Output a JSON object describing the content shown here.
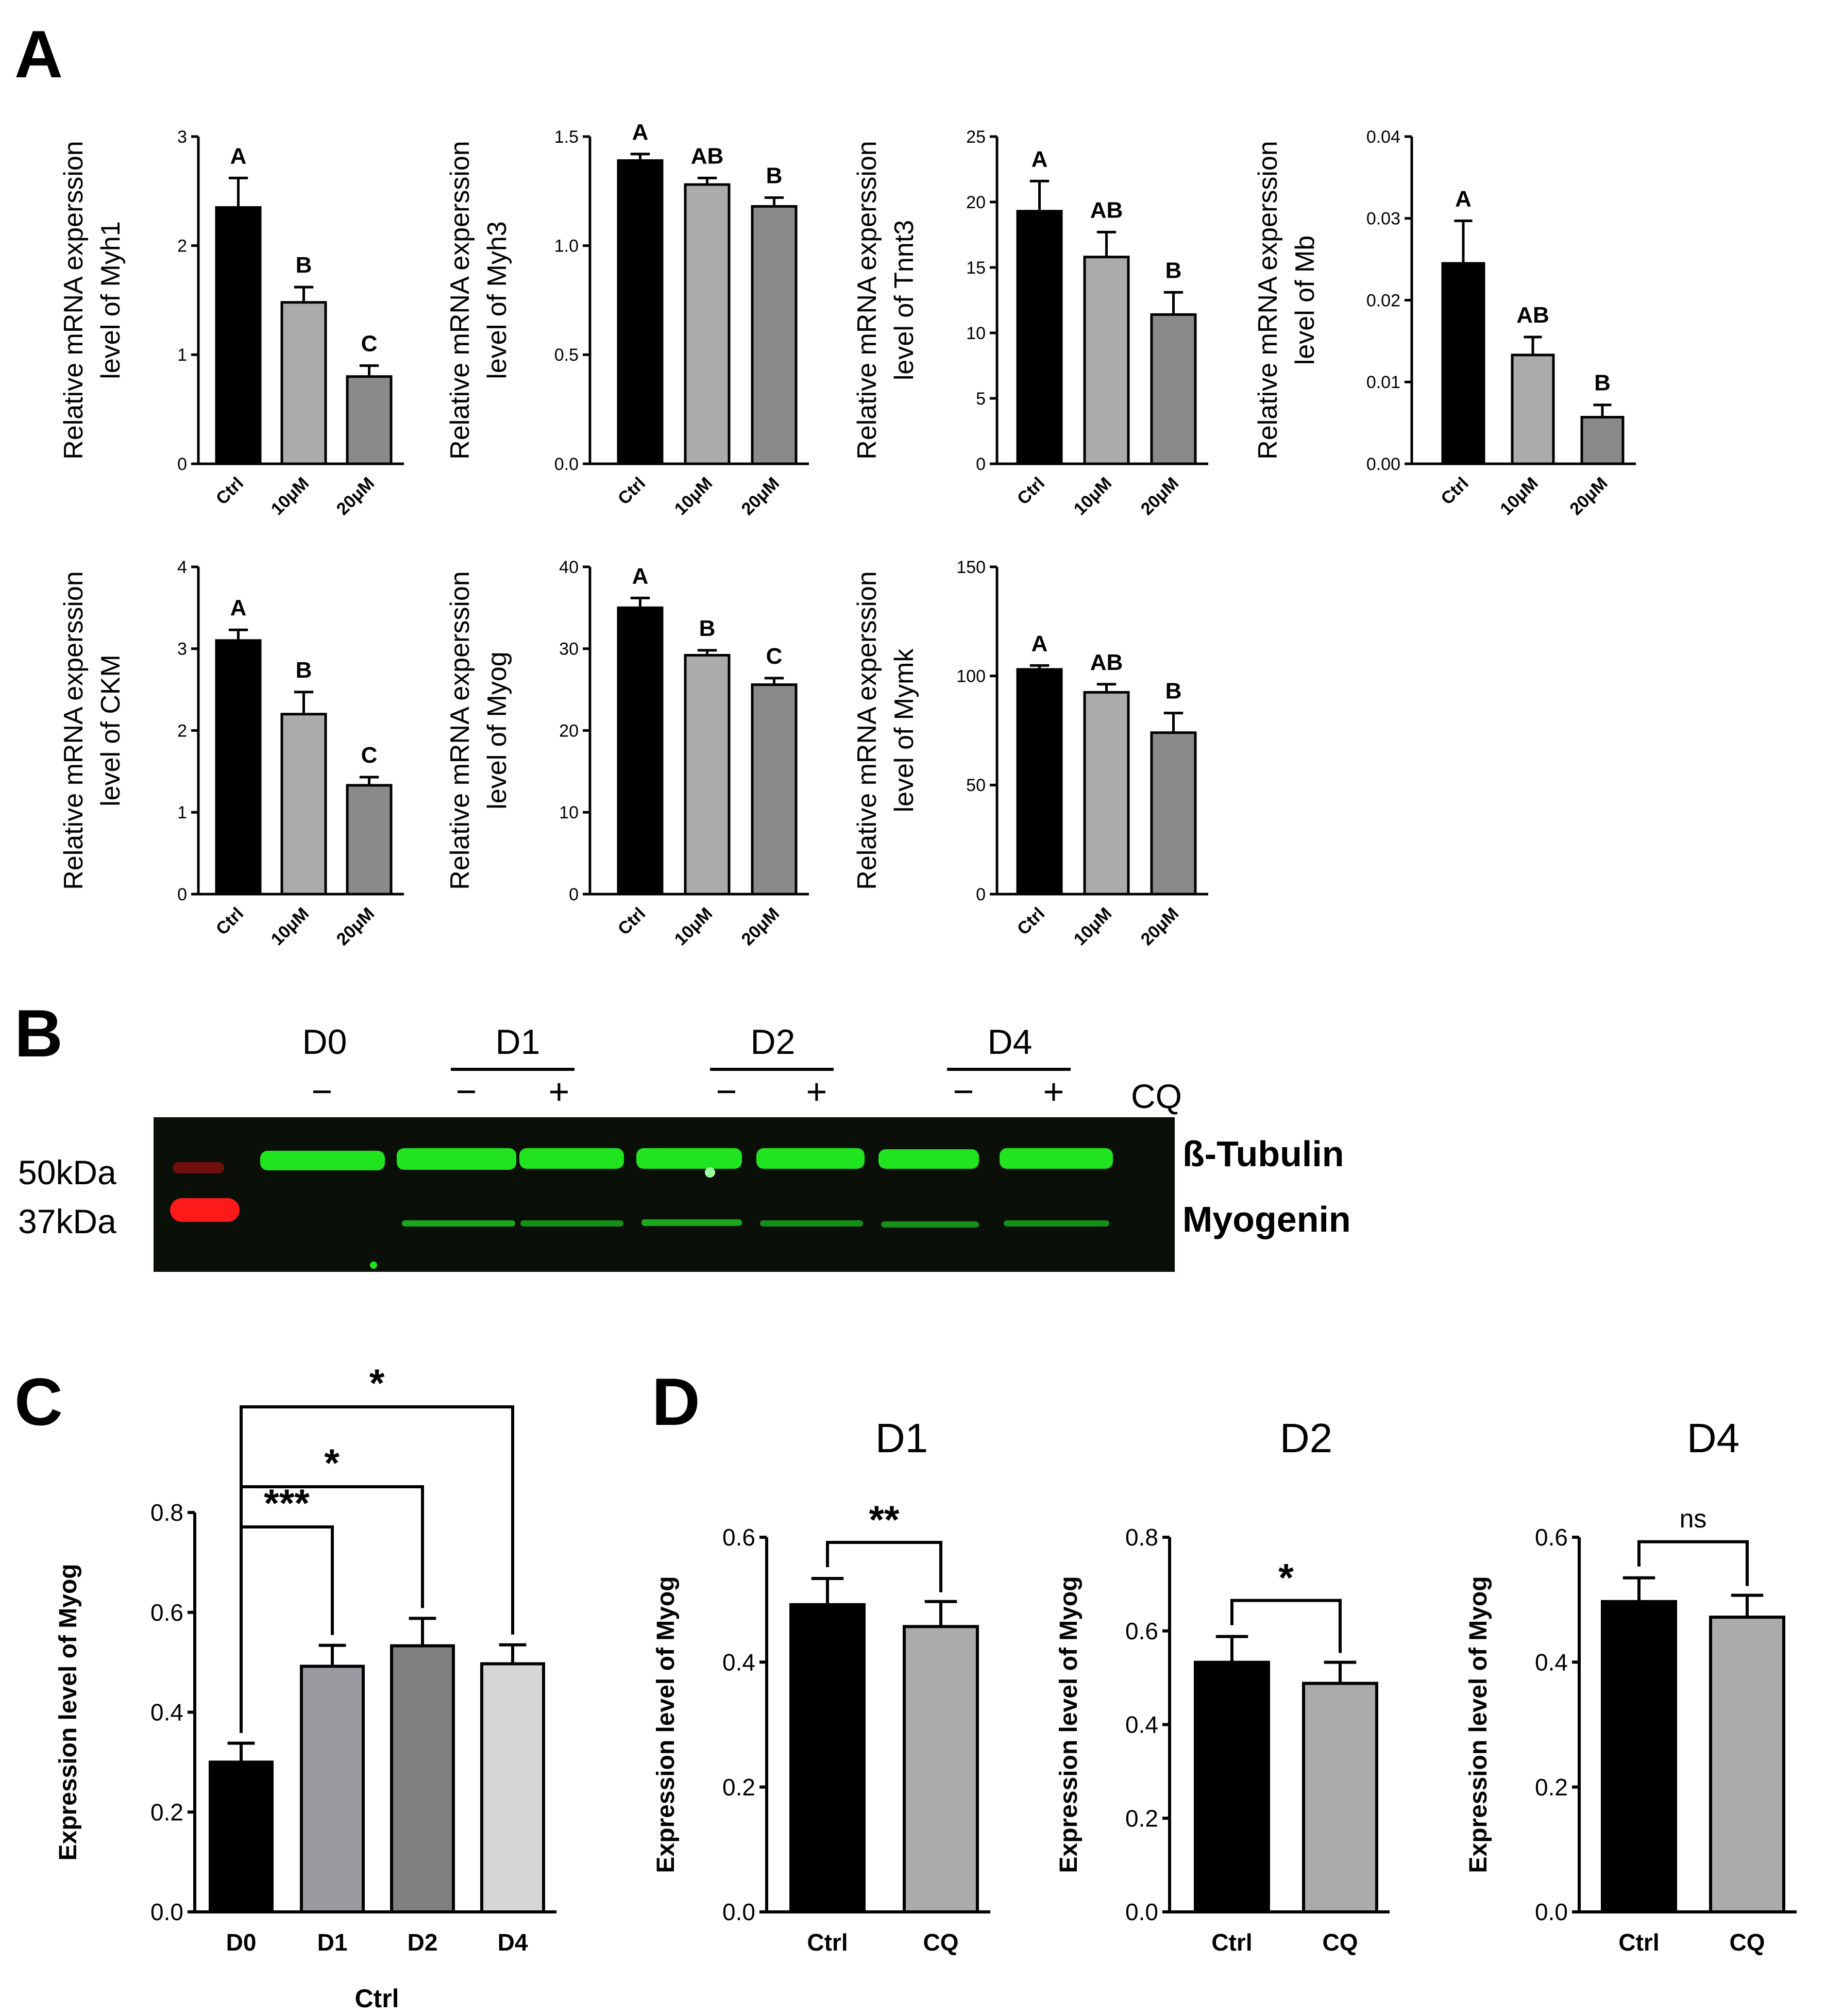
{
  "panel_labels": {
    "a": "A",
    "b": "B",
    "c": "C",
    "d": "D"
  },
  "colors": {
    "ctrl": "#000000",
    "dose10": "#ababab",
    "dose20": "#8a8a8a",
    "d1": "#9a9aa0",
    "d2": "#808080",
    "d4": "#d6d6d6",
    "cq": "#ababab",
    "blot_bg": "#0a0f08",
    "blot_green": "#1fe41f",
    "blot_red": "#ff1a1a"
  },
  "panel_b": {
    "groups": [
      {
        "label": "D0",
        "signs": [
          "−"
        ]
      },
      {
        "label": "D1",
        "signs": [
          "−",
          "+"
        ]
      },
      {
        "label": "D2",
        "signs": [
          "−",
          "+"
        ]
      },
      {
        "label": "D4",
        "signs": [
          "−",
          "+"
        ]
      }
    ],
    "treatment_label": "CQ",
    "marker_50": "50kDa",
    "marker_37": "37kDa",
    "band_top": "ß-Tubulin",
    "band_bottom": "Myogenin"
  },
  "chart_data": [
    {
      "id": "a1",
      "type": "bar",
      "ylabel": [
        "Relative mRNA experssion",
        "level of Myh1"
      ],
      "categories": [
        "Ctrl",
        "10μM",
        "20μM"
      ],
      "values": [
        2.35,
        1.48,
        0.8
      ],
      "errors": [
        0.27,
        0.14,
        0.1
      ],
      "letters": [
        "A",
        "B",
        "C"
      ],
      "ylim": [
        0,
        3
      ],
      "yticks": [
        "0",
        "1",
        "2",
        "3"
      ]
    },
    {
      "id": "a2",
      "type": "bar",
      "ylabel": [
        "Relative mRNA experssion",
        "level of Myh3"
      ],
      "categories": [
        "Ctrl",
        "10μM",
        "20μM"
      ],
      "values": [
        1.39,
        1.28,
        1.18
      ],
      "errors": [
        0.03,
        0.03,
        0.04
      ],
      "letters": [
        "A",
        "AB",
        "B"
      ],
      "ylim": [
        0,
        1.5
      ],
      "yticks": [
        "0.0",
        "0.5",
        "1.0",
        "1.5"
      ]
    },
    {
      "id": "a3",
      "type": "bar",
      "ylabel": [
        "Relative mRNA experssion",
        "level of Tnnt3"
      ],
      "categories": [
        "Ctrl",
        "10μM",
        "20μM"
      ],
      "values": [
        19.3,
        15.8,
        11.4
      ],
      "errors": [
        2.3,
        1.9,
        1.7
      ],
      "letters": [
        "A",
        "AB",
        "B"
      ],
      "ylim": [
        0,
        25
      ],
      "yticks": [
        "0",
        "5",
        "10",
        "15",
        "20",
        "25"
      ]
    },
    {
      "id": "a4",
      "type": "bar",
      "ylabel": [
        "Relative mRNA experssion",
        "level of Mb"
      ],
      "categories": [
        "Ctrl",
        "10μM",
        "20μM"
      ],
      "values": [
        0.0245,
        0.0133,
        0.0057
      ],
      "errors": [
        0.0052,
        0.0022,
        0.0015
      ],
      "letters": [
        "A",
        "AB",
        "B"
      ],
      "ylim": [
        0,
        0.04
      ],
      "yticks": [
        "0.00",
        "0.01",
        "0.02",
        "0.03",
        "0.04"
      ]
    },
    {
      "id": "a5",
      "type": "bar",
      "ylabel": [
        "Relative mRNA experssion",
        "level of  CKM"
      ],
      "categories": [
        "Ctrl",
        "10μM",
        "20μM"
      ],
      "values": [
        3.1,
        2.2,
        1.33
      ],
      "errors": [
        0.13,
        0.27,
        0.1
      ],
      "letters": [
        "A",
        "B",
        "C"
      ],
      "ylim": [
        0,
        4
      ],
      "yticks": [
        "0",
        "1",
        "2",
        "3",
        "4"
      ]
    },
    {
      "id": "a6",
      "type": "bar",
      "ylabel": [
        "Relative mRNA experssion",
        "level of Myog"
      ],
      "categories": [
        "Ctrl",
        "10μM",
        "20μM"
      ],
      "values": [
        35,
        29.2,
        25.6
      ],
      "errors": [
        1.2,
        0.6,
        0.8
      ],
      "letters": [
        "A",
        "B",
        "C"
      ],
      "ylim": [
        0,
        40
      ],
      "yticks": [
        "0",
        "10",
        "20",
        "30",
        "40"
      ]
    },
    {
      "id": "a7",
      "type": "bar",
      "ylabel": [
        "Relative mRNA experssion",
        "level of Mymk"
      ],
      "categories": [
        "Ctrl",
        "10μM",
        "20μM"
      ],
      "values": [
        103,
        92.5,
        74
      ],
      "errors": [
        1.8,
        3.7,
        9.0
      ],
      "letters": [
        "A",
        "AB",
        "B"
      ],
      "ylim": [
        0,
        150
      ],
      "yticks": [
        "0",
        "50",
        "100",
        "150"
      ]
    },
    {
      "id": "c",
      "type": "bar",
      "title": "",
      "ylabel": [
        "Expression level of Myog"
      ],
      "xlabel": "Ctrl",
      "categories": [
        "D0",
        "D1",
        "D2",
        "D4"
      ],
      "values": [
        0.3,
        0.492,
        0.533,
        0.497
      ],
      "errors": [
        0.038,
        0.042,
        0.055,
        0.038
      ],
      "ylim": [
        0,
        0.8
      ],
      "yticks": [
        "0.0",
        "0.2",
        "0.4",
        "0.6",
        "0.8"
      ],
      "significance": [
        {
          "from": "D0",
          "to": "D1",
          "label": "***"
        },
        {
          "from": "D0",
          "to": "D2",
          "label": "*"
        },
        {
          "from": "D0",
          "to": "D4",
          "label": "*"
        }
      ]
    },
    {
      "id": "d1",
      "type": "bar",
      "title": "D1",
      "ylabel": [
        "Expression level of Myog"
      ],
      "categories": [
        "Ctrl",
        "CQ"
      ],
      "values": [
        0.492,
        0.457
      ],
      "errors": [
        0.042,
        0.04
      ],
      "ylim": [
        0,
        0.6
      ],
      "yticks": [
        "0.0",
        "0.2",
        "0.4",
        "0.6"
      ],
      "significance": [
        {
          "from": "Ctrl",
          "to": "CQ",
          "label": "**"
        }
      ]
    },
    {
      "id": "d2",
      "type": "bar",
      "title": "D2",
      "ylabel": [
        "Expression level of Myog"
      ],
      "categories": [
        "Ctrl",
        "CQ"
      ],
      "values": [
        0.533,
        0.488
      ],
      "errors": [
        0.055,
        0.045
      ],
      "ylim": [
        0,
        0.8
      ],
      "yticks": [
        "0.0",
        "0.2",
        "0.4",
        "0.6",
        "0.8"
      ],
      "significance": [
        {
          "from": "Ctrl",
          "to": "CQ",
          "label": "*"
        }
      ]
    },
    {
      "id": "d4",
      "type": "bar",
      "title": "D4",
      "ylabel": [
        "Expression level of Myog"
      ],
      "categories": [
        "Ctrl",
        "CQ"
      ],
      "values": [
        0.497,
        0.472
      ],
      "errors": [
        0.038,
        0.035
      ],
      "ylim": [
        0,
        0.6
      ],
      "yticks": [
        "0.0",
        "0.2",
        "0.4",
        "0.6"
      ],
      "significance": [
        {
          "from": "Ctrl",
          "to": "CQ",
          "label": "ns"
        }
      ]
    }
  ]
}
